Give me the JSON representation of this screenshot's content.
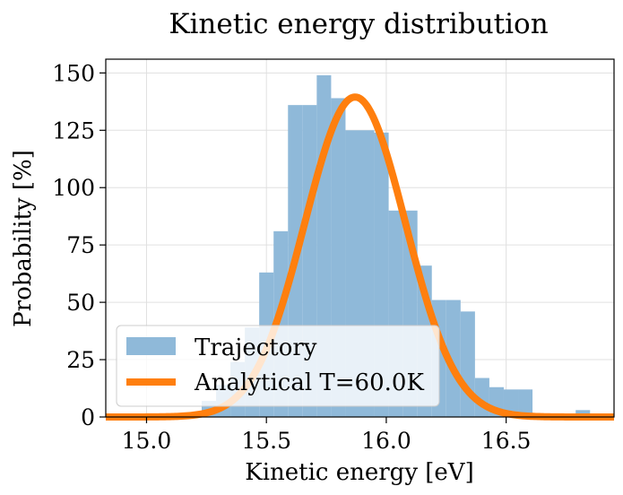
{
  "chart_data": {
    "type": "histogram+line",
    "title": "Kinetic energy distribution",
    "xlabel": "Kinetic energy [eV]",
    "ylabel": "Probability [%]",
    "xlim": [
      14.83,
      16.95
    ],
    "ylim": [
      0,
      156
    ],
    "grid": true,
    "legend_position": "lower-left",
    "xticks": [
      15.0,
      15.5,
      16.0,
      16.5
    ],
    "xtick_labels": [
      "15.0",
      "15.5",
      "16.0",
      "16.5"
    ],
    "yticks": [
      0,
      25,
      50,
      75,
      100,
      125,
      150
    ],
    "ytick_labels": [
      "0",
      "25",
      "50",
      "75",
      "100",
      "125",
      "150"
    ],
    "histogram": {
      "name": "Trajectory",
      "color": "#8fb9d9",
      "bins": [
        {
          "x0": 15.23,
          "x1": 15.29,
          "value": 7
        },
        {
          "x0": 15.29,
          "x1": 15.35,
          "value": 14
        },
        {
          "x0": 15.35,
          "x1": 15.41,
          "value": 24
        },
        {
          "x0": 15.41,
          "x1": 15.47,
          "value": 39
        },
        {
          "x0": 15.47,
          "x1": 15.53,
          "value": 63
        },
        {
          "x0": 15.53,
          "x1": 15.59,
          "value": 81
        },
        {
          "x0": 15.59,
          "x1": 15.65,
          "value": 136
        },
        {
          "x0": 15.65,
          "x1": 15.71,
          "value": 136
        },
        {
          "x0": 15.71,
          "x1": 15.77,
          "value": 149
        },
        {
          "x0": 15.77,
          "x1": 15.83,
          "value": 139
        },
        {
          "x0": 15.83,
          "x1": 15.89,
          "value": 125
        },
        {
          "x0": 15.89,
          "x1": 15.95,
          "value": 125
        },
        {
          "x0": 15.95,
          "x1": 16.01,
          "value": 124
        },
        {
          "x0": 16.01,
          "x1": 16.07,
          "value": 90
        },
        {
          "x0": 16.07,
          "x1": 16.13,
          "value": 90
        },
        {
          "x0": 16.13,
          "x1": 16.19,
          "value": 66
        },
        {
          "x0": 16.19,
          "x1": 16.25,
          "value": 51
        },
        {
          "x0": 16.25,
          "x1": 16.31,
          "value": 51
        },
        {
          "x0": 16.31,
          "x1": 16.37,
          "value": 46
        },
        {
          "x0": 16.37,
          "x1": 16.43,
          "value": 17
        },
        {
          "x0": 16.43,
          "x1": 16.49,
          "value": 13
        },
        {
          "x0": 16.49,
          "x1": 16.55,
          "value": 12
        },
        {
          "x0": 16.55,
          "x1": 16.61,
          "value": 12
        },
        {
          "x0": 16.79,
          "x1": 16.85,
          "value": 3
        }
      ]
    },
    "curve": {
      "name": "Analytical T=60.0K",
      "color": "#ff7f0e",
      "kind": "gaussian",
      "peak_x": 15.87,
      "peak_y": 139.5,
      "sigma": 0.21
    }
  }
}
